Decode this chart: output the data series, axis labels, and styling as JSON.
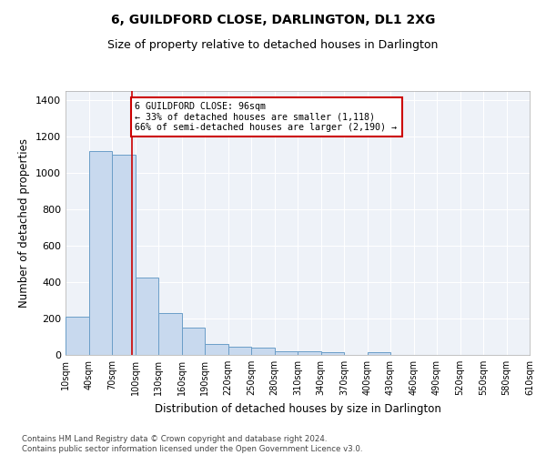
{
  "title1": "6, GUILDFORD CLOSE, DARLINGTON, DL1 2XG",
  "title2": "Size of property relative to detached houses in Darlington",
  "xlabel": "Distribution of detached houses by size in Darlington",
  "ylabel": "Number of detached properties",
  "bar_color": "#c8d9ee",
  "bar_edge_color": "#6b9ec8",
  "background_color": "#eef2f8",
  "grid_color": "#ffffff",
  "annotation_box_color": "#cc0000",
  "annotation_line_color": "#cc0000",
  "property_line_x": 96,
  "annotation_text": "6 GUILDFORD CLOSE: 96sqm\n← 33% of detached houses are smaller (1,118)\n66% of semi-detached houses are larger (2,190) →",
  "footnote": "Contains HM Land Registry data © Crown copyright and database right 2024.\nContains public sector information licensed under the Open Government Licence v3.0.",
  "bin_edges": [
    10,
    40,
    70,
    100,
    130,
    160,
    190,
    220,
    250,
    280,
    310,
    340,
    370,
    400,
    430,
    460,
    490,
    520,
    550,
    580,
    610
  ],
  "bar_heights": [
    210,
    1120,
    1100,
    425,
    232,
    148,
    62,
    47,
    38,
    22,
    22,
    13,
    0,
    13,
    0,
    0,
    0,
    0,
    0,
    0
  ],
  "ylim": [
    0,
    1450
  ],
  "yticks": [
    0,
    200,
    400,
    600,
    800,
    1000,
    1200,
    1400
  ],
  "fig_width": 6.0,
  "fig_height": 5.0,
  "dpi": 100
}
